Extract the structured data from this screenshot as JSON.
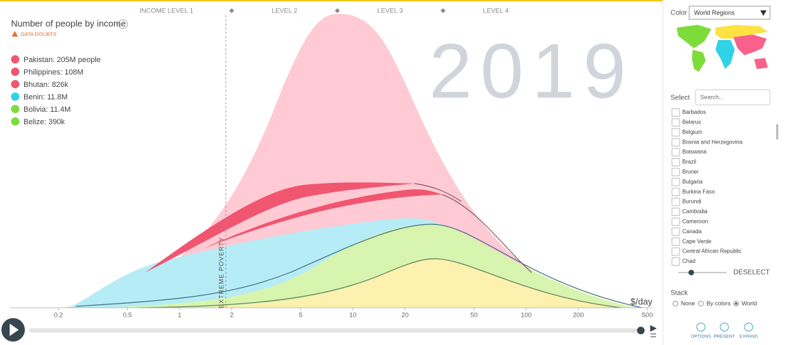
{
  "levels": [
    "INCOME LEVEL 1",
    "LEVEL 2",
    "LEVEL 3",
    "LEVEL 4"
  ],
  "year": "2019",
  "title": "Number of people by income",
  "data_doubts": "DATA DOUBTS",
  "legend": [
    {
      "label": "Pakistan: 205M people",
      "color": "#f0566f"
    },
    {
      "label": "Philippines: 108M",
      "color": "#f0566f"
    },
    {
      "label": "Bhutan: 826k",
      "color": "#f0566f"
    },
    {
      "label": "Benin: 11.8M",
      "color": "#2fd2e6"
    },
    {
      "label": "Bolivia: 11.4M",
      "color": "#7ddc3a"
    },
    {
      "label": "Belize: 390k",
      "color": "#7ddc3a"
    }
  ],
  "extreme_poverty": "EXTREME POVERTY",
  "x_axis": {
    "unit": "$/day",
    "ticks": [
      0.2,
      0.5,
      1,
      2,
      5,
      10,
      20,
      50,
      100,
      200,
      500
    ]
  },
  "sidebar": {
    "color_label": "Color",
    "color_select": "World Regions",
    "select_label": "Select",
    "search_placeholder": "Search...",
    "countries": [
      "Barbados",
      "Belarus",
      "Belgium",
      "Bosnia and Herzegovina",
      "Botswana",
      "Brazil",
      "Brunei",
      "Bulgaria",
      "Burkina Faso",
      "Burundi",
      "Cambodia",
      "Cameroon",
      "Canada",
      "Cape Verde",
      "Central African Republic",
      "Chad"
    ],
    "deselect": "DESELECT",
    "stack_label": "Stack",
    "stack_options": [
      "None",
      "By colors",
      "World"
    ],
    "buttons": [
      "OPTIONS",
      "PRESENT",
      "EXPAND"
    ]
  }
}
